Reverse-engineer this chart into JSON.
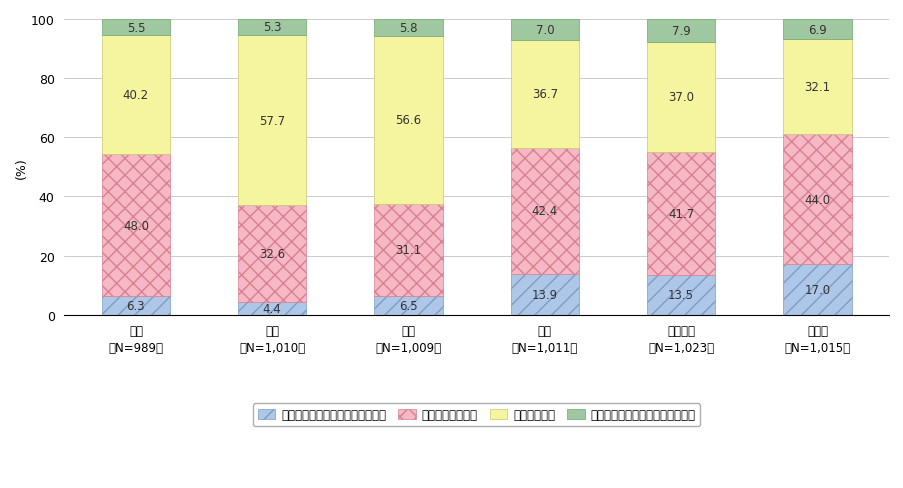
{
  "categories": [
    "日本\n（N=989）",
    "韓国\n（N=1,010）",
    "中国\n（N=1,009）",
    "米国\n（N=1,011）",
    "イギリス\n（N=1,023）",
    "ドイツ\n（N=1,015）"
  ],
  "series": [
    {
      "name": "特に影響しない（利用を続ける）",
      "values": [
        6.3,
        4.4,
        6.5,
        13.9,
        13.5,
        17.0
      ],
      "color": "#aec6e8",
      "hatch": "//",
      "edgecolor": "#7a9fc0"
    },
    {
      "name": "あまり影響しない",
      "values": [
        48.0,
        32.6,
        31.1,
        42.4,
        41.7,
        44.0
      ],
      "color": "#f5b8c4",
      "hatch": "xx",
      "edgecolor": "#d88090"
    },
    {
      "name": "やや影響する",
      "values": [
        40.2,
        57.7,
        56.6,
        36.7,
        37.0,
        32.1
      ],
      "color": "#f5f5a0",
      "hatch": "",
      "edgecolor": "#c8c870"
    },
    {
      "name": "非常に影響する（利用を控える）",
      "values": [
        5.5,
        5.3,
        5.8,
        7.0,
        7.9,
        6.9
      ],
      "color": "#a0c8a0",
      "hatch": "",
      "edgecolor": "#70a870"
    }
  ],
  "ylabel": "(%)",
  "ylim": [
    0,
    100
  ],
  "yticks": [
    0,
    20,
    40,
    60,
    80,
    100
  ],
  "bar_width": 0.5,
  "figure_bg": "#ffffff",
  "axes_bg": "#ffffff",
  "grid_color": "#cccccc"
}
